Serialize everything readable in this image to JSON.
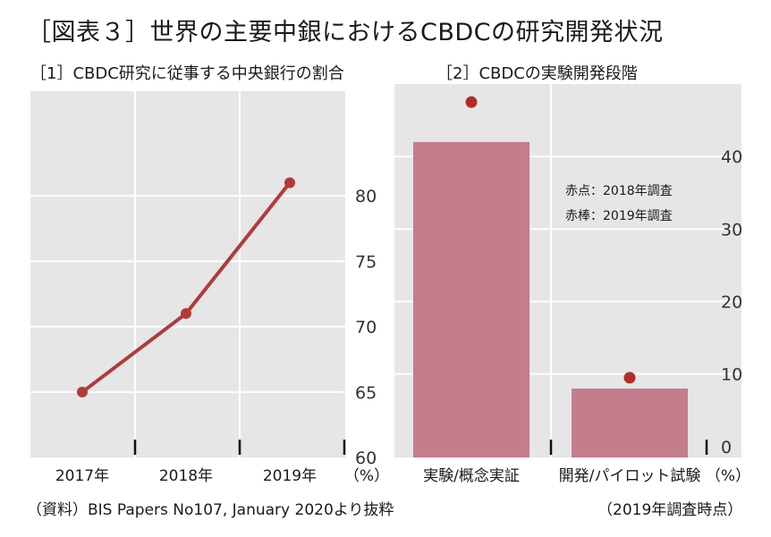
{
  "title": "［図表３］世界の主要中銀におけるCBDCの研究開発状況",
  "source": "（資料）BIS Papers No107, January 2020より抜粋",
  "colors": {
    "panel_bg": "#e6e6e6",
    "grid": "#ffffff",
    "line": "#b23a3a",
    "bar": "#c47d8d",
    "dot": "#b52a2a"
  },
  "chart_data": [
    {
      "type": "line",
      "title": "［1］CBDC研究に従事する中央銀行の割合",
      "categories": [
        "2017年",
        "2018年",
        "2019年"
      ],
      "unit": "（%）",
      "values": [
        65,
        71,
        81
      ],
      "ylim": [
        60,
        88
      ],
      "yticks": [
        60,
        65,
        70,
        75,
        80
      ],
      "grid": true,
      "axis_position": "right"
    },
    {
      "type": "bar",
      "title": "［2］CBDCの実験開発段階",
      "categories": [
        "実験/概念実証",
        "開発/パイロット試験"
      ],
      "unit": "（%）",
      "series": [
        {
          "name": "赤棒：2019年調査",
          "style": "bar",
          "values": [
            42,
            8
          ]
        },
        {
          "name": "赤点：2018年調査",
          "style": "point",
          "values": [
            47.5,
            9.5
          ]
        }
      ],
      "ylim": [
        -1.5,
        50
      ],
      "yticks": [
        0,
        10,
        20,
        30,
        40
      ],
      "grid": true,
      "legend_position": "top-right",
      "axis_position": "right",
      "note": "（2019年調査時点）"
    }
  ]
}
